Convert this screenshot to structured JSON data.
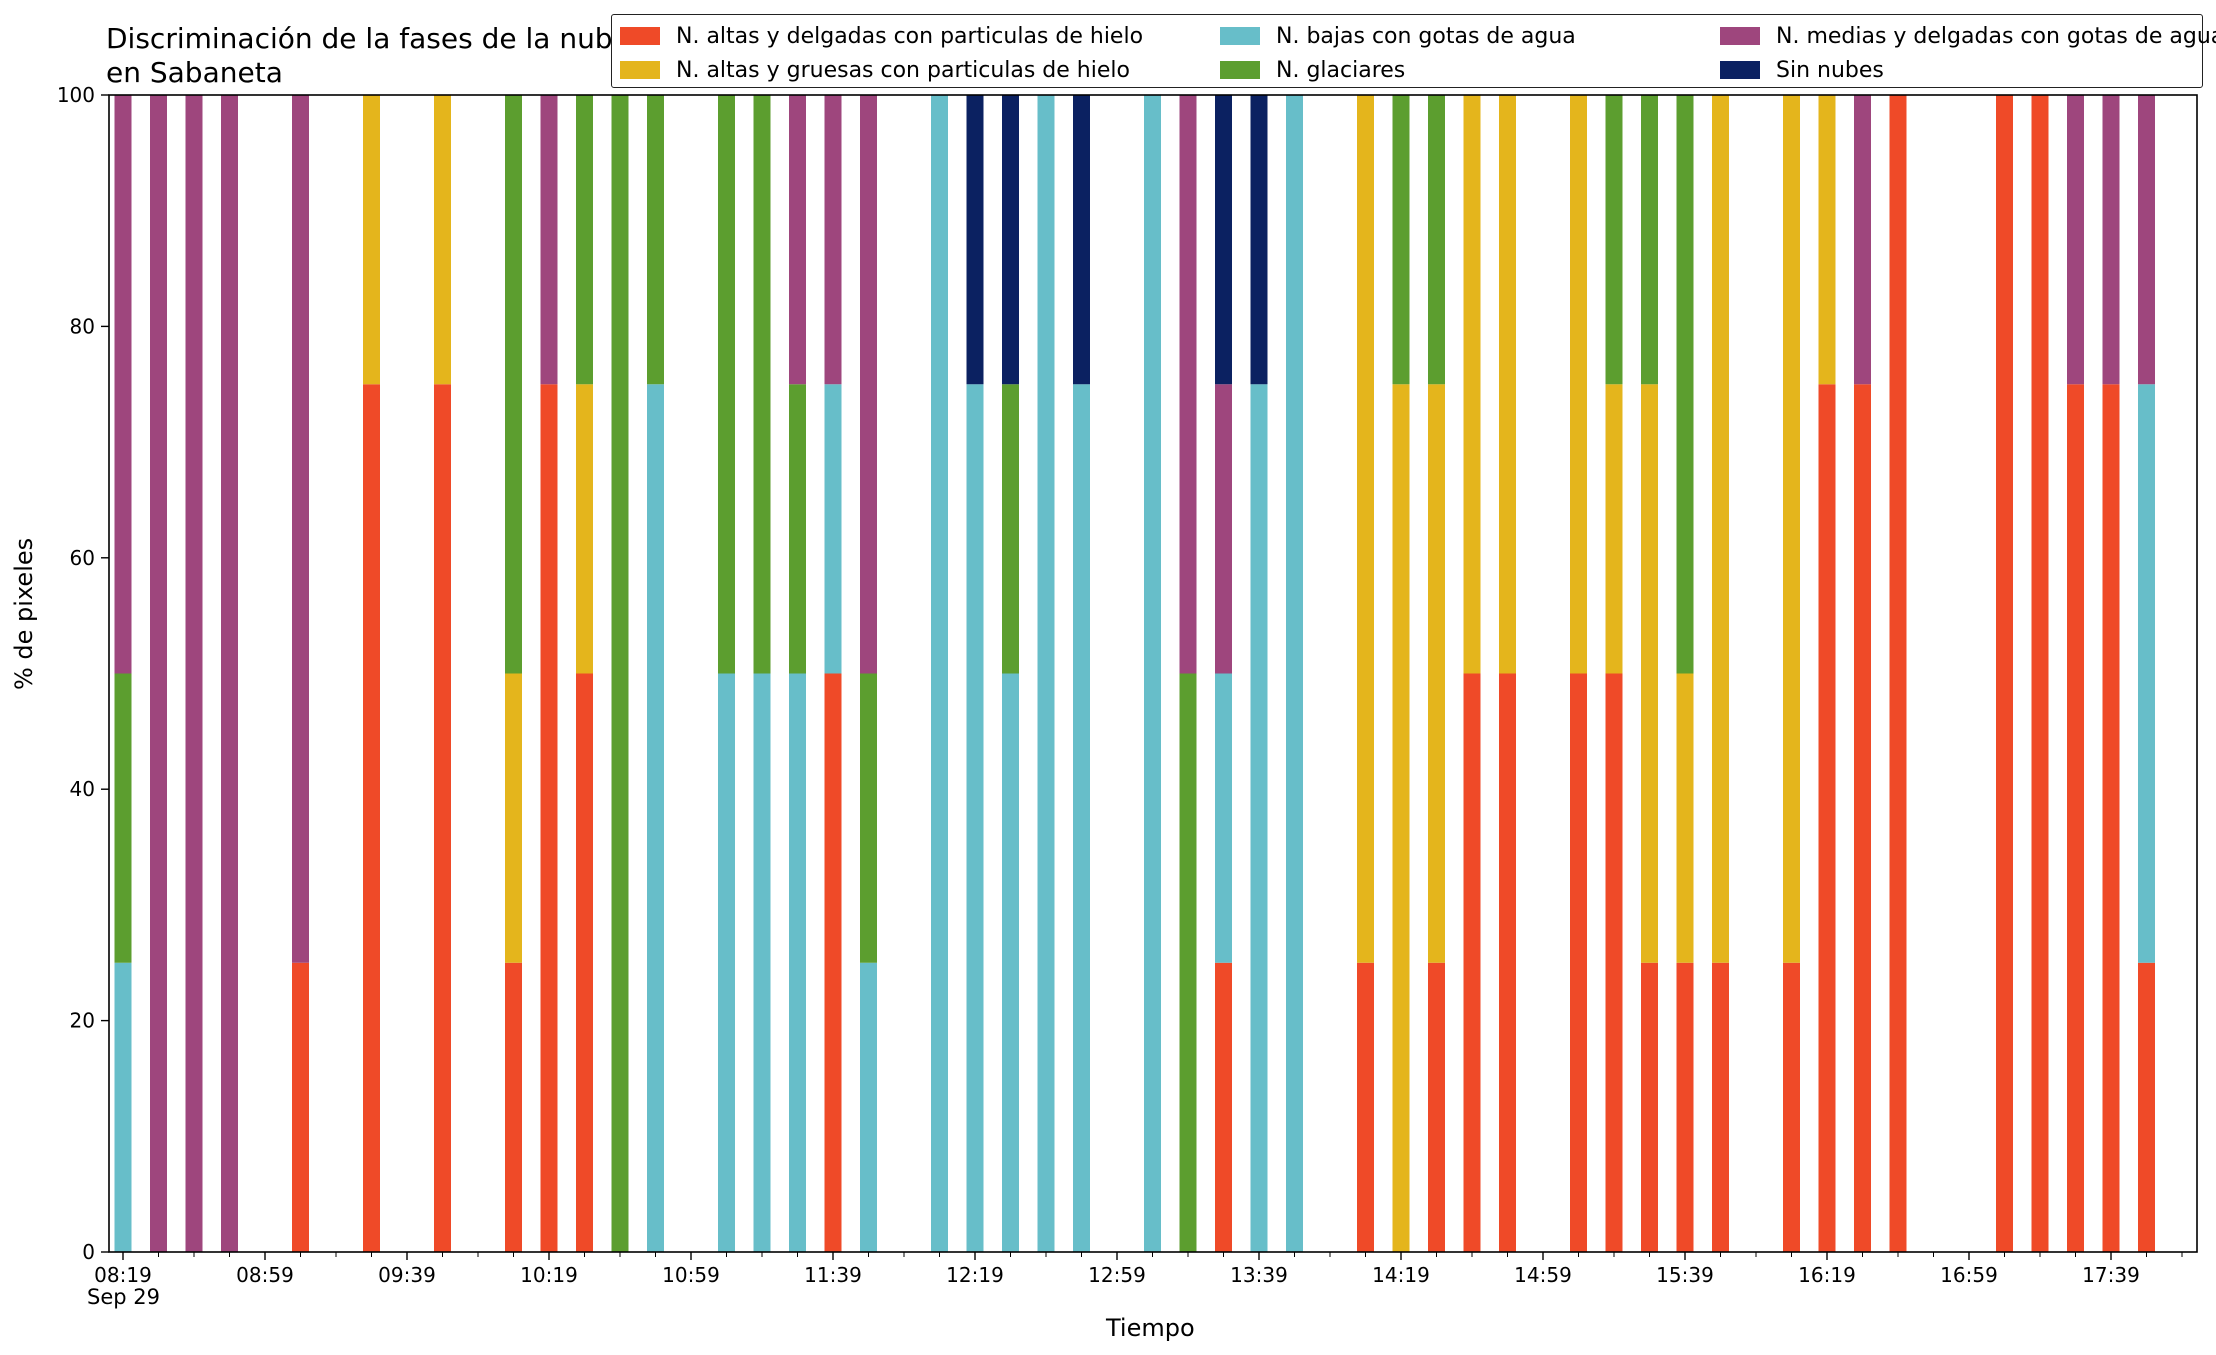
{
  "chart_data": {
    "type": "bar",
    "stacked": true,
    "title": "Discriminación de la fases de la nube en Sabaneta",
    "xlabel": "Tiempo",
    "ylabel": "% de pixeles",
    "ylim": [
      0,
      100
    ],
    "yticks": [
      0,
      20,
      40,
      60,
      80,
      100
    ],
    "grid": false,
    "legend_position": "top-right",
    "date_label": "Sep 29",
    "xticks": [
      "08:19",
      "08:59",
      "09:39",
      "10:19",
      "10:59",
      "11:39",
      "12:19",
      "12:59",
      "13:39",
      "14:19",
      "14:59",
      "15:39",
      "16:19",
      "16:59",
      "17:39"
    ],
    "categories": [
      "08:19",
      "08:29",
      "08:39",
      "08:49",
      "08:59",
      "09:09",
      "09:19",
      "09:29",
      "09:39",
      "09:49",
      "09:59",
      "10:09",
      "10:19",
      "10:29",
      "10:39",
      "10:49",
      "10:59",
      "11:09",
      "11:19",
      "11:29",
      "11:39",
      "11:49",
      "11:59",
      "12:09",
      "12:19",
      "12:29",
      "12:39",
      "12:49",
      "12:59",
      "13:09",
      "13:19",
      "13:29",
      "13:39",
      "13:49",
      "13:59",
      "14:09",
      "14:19",
      "14:29",
      "14:39",
      "14:49",
      "14:59",
      "15:09",
      "15:19",
      "15:29",
      "15:39",
      "15:49",
      "15:59",
      "16:09",
      "16:19",
      "16:29",
      "16:39",
      "16:49",
      "16:59",
      "17:09",
      "17:19",
      "17:29",
      "17:39",
      "17:49",
      "17:59"
    ],
    "series": [
      {
        "name": "N. altas y delgadas con particulas de hielo",
        "color": "#EF4A28",
        "values": [
          0,
          0,
          0,
          0,
          0,
          25,
          0,
          75,
          0,
          75,
          0,
          25,
          75,
          50,
          0,
          0,
          0,
          0,
          0,
          0,
          50,
          0,
          0,
          0,
          0,
          0,
          0,
          0,
          0,
          0,
          0,
          25,
          0,
          0,
          0,
          25,
          0,
          25,
          50,
          50,
          0,
          50,
          50,
          25,
          25,
          25,
          0,
          25,
          75,
          75,
          100,
          0,
          0,
          100,
          100,
          75,
          75,
          25,
          0
        ]
      },
      {
        "name": "N. altas y gruesas con particulas de hielo",
        "color": "#E4B51C",
        "values": [
          0,
          0,
          0,
          0,
          0,
          0,
          0,
          25,
          0,
          25,
          0,
          25,
          0,
          25,
          0,
          0,
          0,
          0,
          0,
          0,
          0,
          0,
          0,
          0,
          0,
          0,
          0,
          0,
          0,
          0,
          0,
          0,
          0,
          0,
          0,
          75,
          75,
          50,
          50,
          50,
          0,
          50,
          25,
          50,
          25,
          75,
          0,
          75,
          25,
          0,
          0,
          0,
          0,
          0,
          0,
          0,
          0,
          0,
          0
        ]
      },
      {
        "name": "N. bajas con gotas de agua",
        "color": "#67BEC9",
        "values": [
          25,
          0,
          0,
          0,
          0,
          0,
          0,
          0,
          0,
          0,
          0,
          0,
          0,
          0,
          0,
          75,
          0,
          50,
          50,
          50,
          25,
          25,
          0,
          100,
          75,
          50,
          100,
          75,
          0,
          100,
          0,
          25,
          75,
          100,
          0,
          0,
          0,
          0,
          0,
          0,
          0,
          0,
          0,
          0,
          0,
          0,
          0,
          0,
          0,
          0,
          0,
          0,
          0,
          0,
          0,
          0,
          0,
          50,
          0
        ]
      },
      {
        "name": "N. glaciares",
        "color": "#5C9E2F",
        "values": [
          25,
          0,
          0,
          0,
          0,
          0,
          0,
          0,
          0,
          0,
          0,
          50,
          0,
          25,
          100,
          25,
          0,
          50,
          50,
          25,
          0,
          25,
          0,
          0,
          0,
          25,
          0,
          0,
          0,
          0,
          50,
          0,
          0,
          0,
          0,
          0,
          25,
          25,
          0,
          0,
          0,
          0,
          25,
          25,
          50,
          0,
          0,
          0,
          0,
          0,
          0,
          0,
          0,
          0,
          0,
          0,
          0,
          0,
          0
        ]
      },
      {
        "name": "N. medias y delgadas con gotas de agua",
        "color": "#9E467D",
        "values": [
          50,
          100,
          100,
          100,
          0,
          75,
          0,
          0,
          0,
          0,
          0,
          0,
          25,
          0,
          0,
          0,
          0,
          0,
          0,
          25,
          25,
          50,
          0,
          0,
          0,
          0,
          0,
          0,
          0,
          0,
          50,
          25,
          0,
          0,
          0,
          0,
          0,
          0,
          0,
          0,
          0,
          0,
          0,
          0,
          0,
          0,
          0,
          0,
          0,
          25,
          0,
          0,
          0,
          0,
          0,
          25,
          25,
          25,
          0
        ]
      },
      {
        "name": "Sin nubes",
        "color": "#0B2161",
        "values": [
          0,
          0,
          0,
          0,
          0,
          0,
          0,
          0,
          0,
          0,
          0,
          0,
          0,
          0,
          0,
          0,
          0,
          0,
          0,
          0,
          0,
          0,
          0,
          0,
          25,
          25,
          0,
          25,
          0,
          0,
          0,
          25,
          25,
          0,
          0,
          0,
          0,
          0,
          0,
          0,
          0,
          0,
          0,
          0,
          0,
          0,
          0,
          0,
          0,
          0,
          0,
          0,
          0,
          0,
          0,
          0,
          0,
          0,
          0
        ]
      }
    ]
  }
}
